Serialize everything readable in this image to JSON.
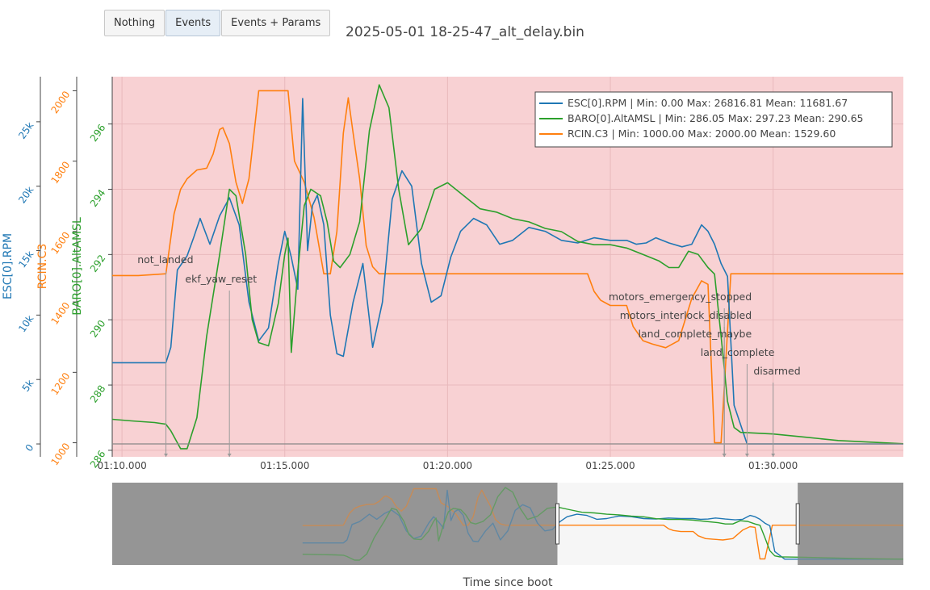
{
  "buttons": [
    "Nothing",
    "Events",
    "Events + Params"
  ],
  "active_button": "Events",
  "colors": {
    "blue": "#1f77b4",
    "green": "#2ca02c",
    "orange": "#ff7f0e",
    "plot_bg": "#f8d1d3",
    "range_bg": "#959595"
  },
  "chart_data": {
    "type": "line",
    "title": "2025-05-01 18-25-47_alt_delay.bin",
    "xlabel": "Time since boot",
    "x_ticks": [
      "01:10.000",
      "01:15.000",
      "01:20.000",
      "01:25.000",
      "01:30.000"
    ],
    "x_tick_seconds": [
      70,
      75,
      80,
      85,
      90
    ],
    "xlim": [
      69.7,
      94.0
    ],
    "axes": [
      {
        "title": "ESC[0].RPM",
        "color": "#1f77b4",
        "ylim": [
          -1000,
          28500
        ],
        "ticks": [
          0,
          5000,
          10000,
          15000,
          20000,
          25000
        ],
        "tick_labels": [
          "0",
          "5k",
          "10k",
          "15k",
          "20k",
          "25k"
        ]
      },
      {
        "title": "RCIN.C3",
        "color": "#ff7f0e",
        "ylim": [
          960,
          2040
        ],
        "ticks": [
          1000,
          1200,
          1400,
          1600,
          1800,
          2000
        ],
        "tick_labels": [
          "1000",
          "1200",
          "1400",
          "1600",
          "1800",
          "2000"
        ]
      },
      {
        "title": "BARO[0].AltAMSL",
        "color": "#2ca02c",
        "ylim": [
          285.8,
          297.45
        ],
        "ticks": [
          286,
          288,
          290,
          292,
          294,
          296
        ],
        "tick_labels": [
          "286",
          "288",
          "290",
          "292",
          "294",
          "296"
        ]
      }
    ],
    "legend": {
      "placement": "top-right",
      "entries": [
        {
          "name": "ESC[0].RPM",
          "color": "#1f77b4",
          "min": "Min: 0.00",
          "max": "Max: 26816.81",
          "mean": "Mean: 11681.67"
        },
        {
          "name": "BARO[0].AltAMSL",
          "color": "#2ca02c",
          "min": "Min: 286.05",
          "max": "Max: 297.23",
          "mean": "Mean: 290.65"
        },
        {
          "name": "RCIN.C3",
          "color": "#ff7f0e",
          "min": "Min: 1000.00",
          "max": "Max: 2000.00",
          "mean": "Mean: 1529.60"
        }
      ]
    },
    "events": [
      {
        "label": "not_landed",
        "t": 71.35
      },
      {
        "label": "ekf_yaw_reset",
        "t": 73.3
      },
      {
        "label": "motors_emergency_stopped",
        "t": 88.5
      },
      {
        "label": "motors_interlock_disabled",
        "t": 88.5
      },
      {
        "label": "land_complete_maybe",
        "t": 88.5
      },
      {
        "label": "land_complete",
        "t": 89.2
      },
      {
        "label": "disarmed",
        "t": 90.0
      }
    ],
    "series": [
      {
        "name": "ESC[0].RPM",
        "axis": 0,
        "color": "#1f77b4",
        "x": [
          69.7,
          70.5,
          71.35,
          71.5,
          71.7,
          72.0,
          72.2,
          72.4,
          72.7,
          73.0,
          73.3,
          73.6,
          73.9,
          74.2,
          74.5,
          74.8,
          75.0,
          75.2,
          75.4,
          75.55,
          75.7,
          75.85,
          76.0,
          76.2,
          76.4,
          76.6,
          76.8,
          77.1,
          77.4,
          77.7,
          78.0,
          78.3,
          78.6,
          78.9,
          79.2,
          79.5,
          79.8,
          80.1,
          80.4,
          80.8,
          81.2,
          81.6,
          82.0,
          82.5,
          83.0,
          83.5,
          84.0,
          84.5,
          85.0,
          85.5,
          85.8,
          86.1,
          86.4,
          86.8,
          87.2,
          87.5,
          87.8,
          88.0,
          88.2,
          88.4,
          88.6,
          88.8,
          89.2,
          90.0,
          92.0,
          94.0
        ],
        "y": [
          6300,
          6300,
          6300,
          7500,
          13500,
          14600,
          16000,
          17500,
          15500,
          17700,
          19100,
          17000,
          11000,
          8000,
          9000,
          14000,
          16500,
          14500,
          12000,
          26800,
          15000,
          18500,
          19300,
          17000,
          10000,
          7000,
          6800,
          11000,
          14000,
          7500,
          11000,
          19000,
          21200,
          20000,
          14000,
          11000,
          11500,
          14500,
          16500,
          17500,
          17000,
          15500,
          15800,
          16800,
          16500,
          15800,
          15600,
          16000,
          15800,
          15800,
          15500,
          15600,
          16000,
          15600,
          15300,
          15500,
          17000,
          16500,
          15500,
          14000,
          13000,
          3000,
          0,
          0,
          0,
          0
        ]
      },
      {
        "name": "BARO[0].AltAMSL",
        "axis": 2,
        "color": "#2ca02c",
        "x": [
          69.7,
          70.3,
          71.0,
          71.35,
          71.5,
          71.8,
          72.0,
          72.3,
          72.6,
          73.0,
          73.3,
          73.5,
          73.8,
          74.0,
          74.2,
          74.5,
          74.8,
          75.0,
          75.1,
          75.2,
          75.4,
          75.6,
          75.8,
          76.1,
          76.3,
          76.5,
          76.7,
          77.0,
          77.3,
          77.6,
          77.9,
          78.2,
          78.5,
          78.8,
          79.2,
          79.6,
          80.0,
          80.5,
          81.0,
          81.5,
          82.0,
          82.5,
          83.0,
          83.5,
          84.0,
          84.5,
          85.0,
          85.5,
          86.0,
          86.5,
          86.8,
          87.1,
          87.4,
          87.7,
          88.0,
          88.2,
          88.4,
          88.6,
          88.8,
          89.0,
          90.0,
          91.0,
          92.0,
          93.0,
          94.0
        ],
        "y": [
          286.95,
          286.9,
          286.85,
          286.8,
          286.6,
          286.05,
          286.05,
          287.0,
          289.5,
          292.0,
          294.0,
          293.8,
          292.0,
          290.0,
          289.3,
          289.2,
          290.5,
          292.0,
          292.5,
          289.0,
          291.5,
          293.5,
          294.0,
          293.8,
          293.0,
          291.8,
          291.6,
          292.0,
          293.0,
          295.8,
          297.2,
          296.5,
          294.0,
          292.3,
          292.8,
          294.0,
          294.2,
          293.8,
          293.4,
          293.3,
          293.1,
          293.0,
          292.8,
          292.7,
          292.4,
          292.3,
          292.3,
          292.2,
          292.0,
          291.8,
          291.6,
          291.6,
          292.1,
          292.0,
          291.6,
          291.4,
          289.5,
          287.5,
          286.7,
          286.55,
          286.5,
          286.4,
          286.3,
          286.25,
          286.2
        ]
      },
      {
        "name": "RCIN.C3",
        "axis": 1,
        "color": "#ff7f0e",
        "x": [
          69.7,
          70.5,
          71.35,
          71.6,
          71.8,
          72.0,
          72.3,
          72.6,
          72.8,
          73.0,
          73.1,
          73.3,
          73.5,
          73.7,
          73.9,
          74.2,
          74.4,
          74.6,
          74.75,
          74.9,
          75.1,
          75.3,
          75.6,
          75.9,
          76.2,
          76.4,
          76.6,
          76.8,
          76.95,
          77.1,
          77.3,
          77.5,
          77.7,
          77.9,
          78.3,
          81.0,
          83.0,
          84.3,
          84.5,
          84.7,
          85.0,
          85.5,
          85.7,
          86.0,
          86.3,
          86.7,
          87.1,
          87.5,
          87.8,
          88.0,
          88.2,
          88.4,
          88.7,
          89.0,
          94.0
        ],
        "y": [
          1475,
          1475,
          1480,
          1650,
          1720,
          1750,
          1775,
          1780,
          1820,
          1890,
          1895,
          1850,
          1740,
          1680,
          1750,
          2000,
          2000,
          2000,
          2000,
          2000,
          2000,
          1800,
          1740,
          1640,
          1480,
          1480,
          1600,
          1880,
          1980,
          1880,
          1750,
          1560,
          1500,
          1480,
          1480,
          1480,
          1480,
          1480,
          1430,
          1405,
          1390,
          1390,
          1330,
          1290,
          1280,
          1270,
          1290,
          1410,
          1460,
          1450,
          1000,
          1000,
          1480,
          1480,
          1480
        ]
      }
    ],
    "navigator": {
      "range_window": [
        0.5627,
        0.8665
      ]
    }
  }
}
